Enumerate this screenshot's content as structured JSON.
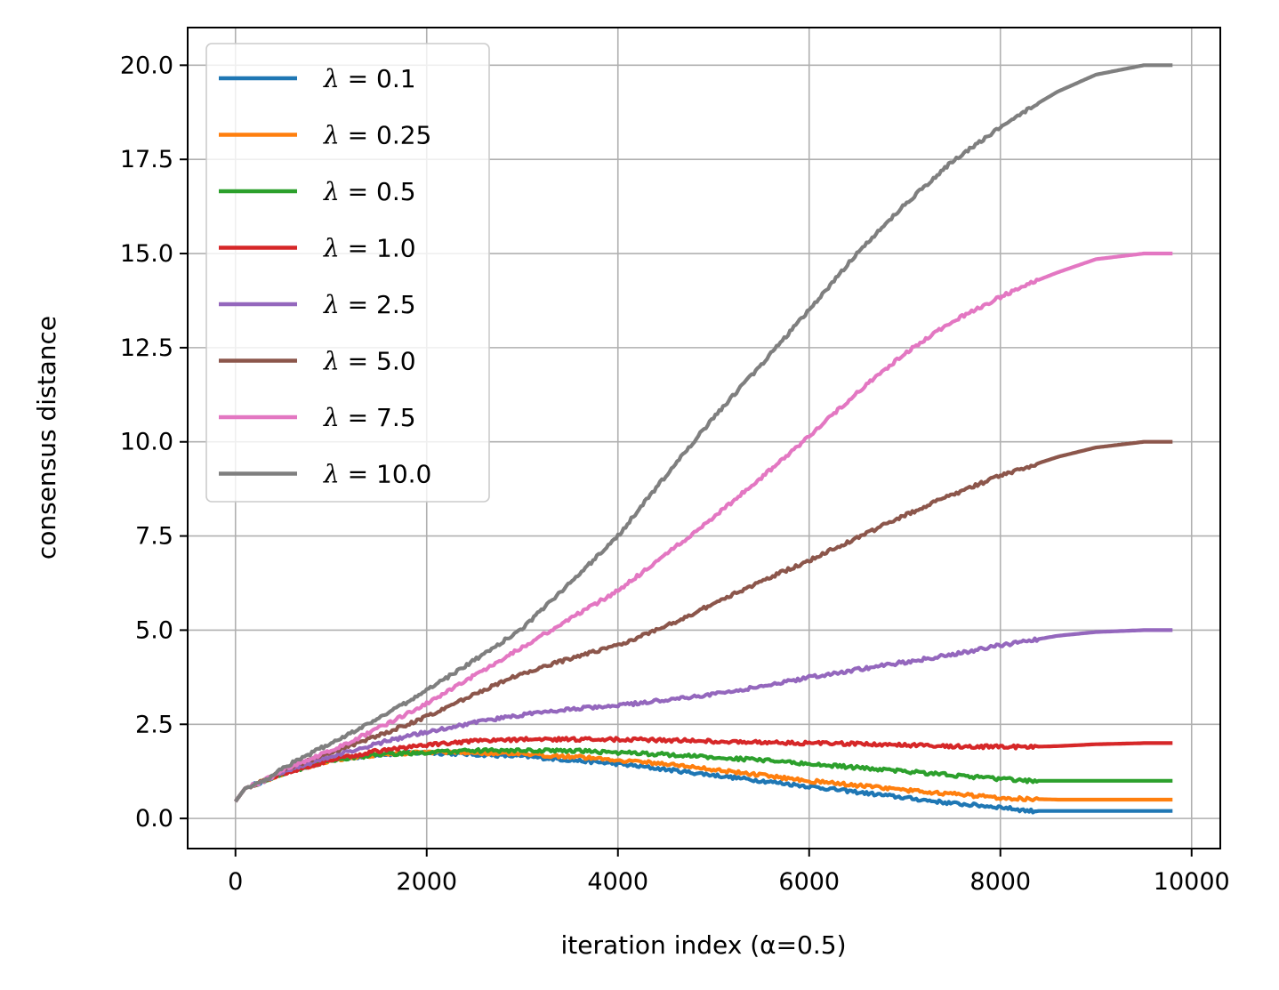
{
  "chart_data": {
    "type": "line",
    "title": "",
    "xlabel": "iteration index (α=0.5)",
    "ylabel": "consensus distance",
    "xlim": [
      -500,
      10300
    ],
    "ylim": [
      -0.8,
      21.0
    ],
    "xticks": [
      0,
      2000,
      4000,
      6000,
      8000,
      10000
    ],
    "xtick_labels": [
      "0",
      "2000",
      "4000",
      "6000",
      "8000",
      "10000"
    ],
    "yticks": [
      0.0,
      2.5,
      5.0,
      7.5,
      10.0,
      12.5,
      15.0,
      17.5,
      20.0
    ],
    "ytick_labels": [
      "0.0",
      "2.5",
      "5.0",
      "7.5",
      "10.0",
      "12.5",
      "15.0",
      "17.5",
      "20.0"
    ],
    "grid": true,
    "legend_position": "top-left",
    "x": [
      0,
      100,
      300,
      500,
      1000,
      1500,
      2000,
      2500,
      3000,
      3500,
      4000,
      4500,
      5000,
      5500,
      6000,
      6500,
      7000,
      7500,
      8000,
      8300,
      8600,
      9000,
      9500,
      9800
    ],
    "series": [
      {
        "name": "λ = 0.1",
        "symbol": "λ",
        "value": "0.1",
        "color": "#1f77b4",
        "values": [
          0.45,
          0.8,
          1.0,
          1.2,
          1.55,
          1.7,
          1.75,
          1.7,
          1.65,
          1.55,
          1.45,
          1.3,
          1.15,
          1.0,
          0.85,
          0.7,
          0.55,
          0.4,
          0.3,
          0.2,
          0.2,
          0.2,
          0.2,
          0.2
        ]
      },
      {
        "name": "λ = 0.25",
        "symbol": "λ",
        "value": "0.25",
        "color": "#ff7f0e",
        "values": [
          0.45,
          0.8,
          1.0,
          1.2,
          1.55,
          1.7,
          1.75,
          1.75,
          1.7,
          1.65,
          1.55,
          1.45,
          1.3,
          1.15,
          1.0,
          0.88,
          0.75,
          0.65,
          0.55,
          0.52,
          0.5,
          0.5,
          0.5,
          0.5
        ]
      },
      {
        "name": "λ = 0.5",
        "symbol": "λ",
        "value": "0.5",
        "color": "#2ca02c",
        "values": [
          0.45,
          0.8,
          1.0,
          1.2,
          1.55,
          1.7,
          1.75,
          1.8,
          1.8,
          1.8,
          1.75,
          1.7,
          1.62,
          1.55,
          1.45,
          1.35,
          1.25,
          1.15,
          1.05,
          1.0,
          1.0,
          1.0,
          1.0,
          1.0
        ]
      },
      {
        "name": "λ = 1.0",
        "symbol": "λ",
        "value": "1.0",
        "color": "#d62728",
        "values": [
          0.45,
          0.8,
          1.0,
          1.2,
          1.55,
          1.8,
          1.95,
          2.05,
          2.1,
          2.1,
          2.1,
          2.08,
          2.05,
          2.02,
          2.0,
          1.98,
          1.95,
          1.92,
          1.9,
          1.9,
          1.92,
          1.97,
          2.0,
          2.0
        ]
      },
      {
        "name": "λ = 2.5",
        "symbol": "λ",
        "value": "2.5",
        "color": "#9467bd",
        "values": [
          0.45,
          0.8,
          1.0,
          1.25,
          1.65,
          2.0,
          2.3,
          2.55,
          2.75,
          2.9,
          3.0,
          3.15,
          3.3,
          3.5,
          3.75,
          3.95,
          4.15,
          4.35,
          4.6,
          4.72,
          4.85,
          4.95,
          5.0,
          5.0
        ]
      },
      {
        "name": "λ = 5.0",
        "symbol": "λ",
        "value": "5.0",
        "color": "#8c564b",
        "values": [
          0.45,
          0.8,
          1.0,
          1.3,
          1.75,
          2.2,
          2.7,
          3.3,
          3.85,
          4.25,
          4.6,
          5.1,
          5.7,
          6.3,
          6.85,
          7.45,
          8.05,
          8.6,
          9.1,
          9.35,
          9.6,
          9.85,
          10.0,
          10.0
        ]
      },
      {
        "name": "λ = 7.5",
        "symbol": "λ",
        "value": "7.5",
        "color": "#e377c2",
        "values": [
          0.45,
          0.8,
          1.0,
          1.3,
          1.8,
          2.4,
          3.05,
          3.8,
          4.55,
          5.3,
          6.05,
          7.0,
          8.0,
          9.05,
          10.15,
          11.3,
          12.35,
          13.2,
          13.85,
          14.2,
          14.5,
          14.85,
          15.0,
          15.0
        ]
      },
      {
        "name": "λ = 10.0",
        "symbol": "λ",
        "value": "10.0",
        "color": "#7f7f7f",
        "values": [
          0.45,
          0.8,
          1.0,
          1.35,
          2.0,
          2.65,
          3.4,
          4.2,
          5.05,
          6.25,
          7.5,
          9.1,
          10.65,
          12.05,
          13.5,
          15.0,
          16.3,
          17.45,
          18.35,
          18.85,
          19.3,
          19.75,
          20.0,
          20.0
        ]
      }
    ]
  }
}
